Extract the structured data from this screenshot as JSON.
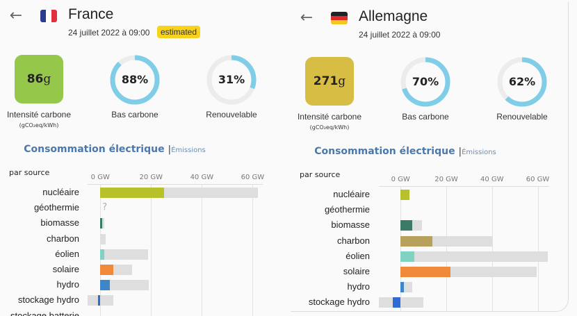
{
  "panels": [
    {
      "country": "France",
      "flag": "fr",
      "date": "24 juillet 2022 à 09:00",
      "badge": "estimated",
      "carbon_value": "86",
      "carbon_unit": "g",
      "carbon_color": "#95c84a",
      "carbon_label": "Intensité carbone",
      "carbon_sublabel": "(gCO₂eq/kWh)",
      "low_carbon_pct": 88,
      "low_carbon_text": "88%",
      "low_carbon_label": "Bas carbone",
      "renewable_pct": 31,
      "renewable_text": "31%",
      "renewable_label": "Renouvelable",
      "tab_active": "Consommation électrique",
      "tab_other": "Émissions",
      "chart_title": "par source",
      "chart_data": {
        "type": "bar",
        "xlim": [
          -5,
          64
        ],
        "ticks": [
          {
            "v": 0,
            "label": "0 GW"
          },
          {
            "v": 20,
            "label": "20 GW"
          },
          {
            "v": 40,
            "label": "40 GW"
          },
          {
            "v": 60,
            "label": "60 GW"
          }
        ],
        "rows": [
          {
            "label": "nucléaire",
            "value": 25,
            "cap_min": 0,
            "cap_max": 62,
            "color": "#b7c22a"
          },
          {
            "label": "géothermie",
            "value": null,
            "unknown": "?",
            "color": "#999"
          },
          {
            "label": "biomasse",
            "value": 0.8,
            "cap_min": 0,
            "cap_max": 1.6,
            "color": "#3c7a68"
          },
          {
            "label": "charbon",
            "value": 0,
            "cap_min": 0,
            "cap_max": 2,
            "color": "#b8a15a"
          },
          {
            "label": "éolien",
            "value": 1.5,
            "cap_min": 0,
            "cap_max": 18.8,
            "color": "#7fd3c0"
          },
          {
            "label": "solaire",
            "value": 5.2,
            "cap_min": 0,
            "cap_max": 12.6,
            "color": "#f0893a"
          },
          {
            "label": "hydro",
            "value": 3.8,
            "cap_min": 0,
            "cap_max": 19,
            "color": "#3f86c8"
          },
          {
            "label": "stockage hydro",
            "value": -1,
            "cap_min": -5,
            "cap_max": 5,
            "color": "#2f6bd6"
          },
          {
            "label": "stockage batterie",
            "value": null
          }
        ]
      }
    },
    {
      "country": "Allemagne",
      "flag": "de",
      "date": "24 juillet 2022 à 09:00",
      "badge": "",
      "carbon_value": "271",
      "carbon_unit": "g",
      "carbon_color": "#d8bd45",
      "carbon_label": "Intensité carbone",
      "carbon_sublabel": "(gCO₂eq/kWh)",
      "low_carbon_pct": 70,
      "low_carbon_text": "70%",
      "low_carbon_label": "Bas carbone",
      "renewable_pct": 62,
      "renewable_text": "62%",
      "renewable_label": "Renouvelable",
      "tab_active": "Consommation électrique",
      "tab_other": "Émissions",
      "chart_title": "par source",
      "chart_data": {
        "type": "bar",
        "xlim": [
          -9.5,
          65
        ],
        "ticks": [
          {
            "v": 0,
            "label": "0 GW"
          },
          {
            "v": 20,
            "label": "20 GW"
          },
          {
            "v": 40,
            "label": "40 GW"
          },
          {
            "v": 60,
            "label": "60 GW"
          }
        ],
        "rows": [
          {
            "label": "nucléaire",
            "value": 4,
            "cap_min": 0,
            "cap_max": 4,
            "color": "#b7c22a"
          },
          {
            "label": "géothermie",
            "value": null,
            "color": "#999"
          },
          {
            "label": "biomasse",
            "value": 5,
            "cap_min": 0,
            "cap_max": 9.5,
            "color": "#3c7a68"
          },
          {
            "label": "charbon",
            "value": 14,
            "cap_min": 0,
            "cap_max": 40,
            "color": "#b8a15a"
          },
          {
            "label": "éolien",
            "value": 6,
            "cap_min": 0,
            "cap_max": 64.5,
            "color": "#7fd3c0"
          },
          {
            "label": "solaire",
            "value": 21.7,
            "cap_min": 0,
            "cap_max": 59.5,
            "color": "#f0893a"
          },
          {
            "label": "hydro",
            "value": 1.5,
            "cap_min": 0,
            "cap_max": 5,
            "color": "#3f86c8"
          },
          {
            "label": "stockage hydro",
            "value": -3.5,
            "cap_min": -9.5,
            "cap_max": 10,
            "color": "#2f6bd6"
          }
        ]
      }
    }
  ]
}
